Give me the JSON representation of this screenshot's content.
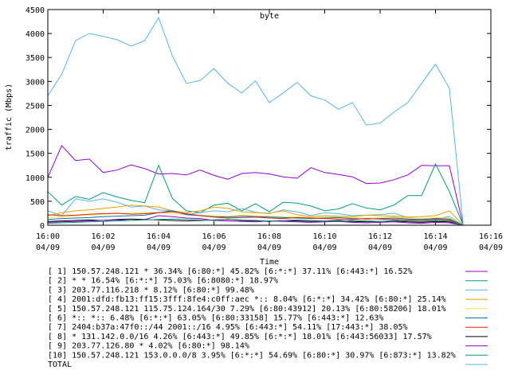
{
  "chart_data": {
    "type": "line",
    "title": "byte",
    "xlabel": "Time",
    "ylabel": "traffic (Mbps)",
    "ylim": [
      0,
      4500
    ],
    "xlim": [
      0,
      16
    ],
    "yticks": [
      0,
      500,
      1000,
      1500,
      2000,
      2500,
      3000,
      3500,
      4000,
      4500
    ],
    "xticks": [
      {
        "t": 0,
        "time": "16:00",
        "date": "04/09"
      },
      {
        "t": 2,
        "time": "16:02",
        "date": "04/09"
      },
      {
        "t": 4,
        "time": "16:04",
        "date": "04/09"
      },
      {
        "t": 6,
        "time": "16:06",
        "date": "04/09"
      },
      {
        "t": 8,
        "time": "16:08",
        "date": "04/09"
      },
      {
        "t": 10,
        "time": "16:10",
        "date": "04/09"
      },
      {
        "t": 12,
        "time": "16:12",
        "date": "04/09"
      },
      {
        "t": 14,
        "time": "16:14",
        "date": "04/09"
      },
      {
        "t": 16,
        "time": "16:16",
        "date": "04/09"
      }
    ],
    "x": [
      0,
      0.5,
      1,
      1.5,
      2,
      2.5,
      3,
      3.5,
      4,
      4.5,
      5,
      5.5,
      6,
      6.5,
      7,
      7.5,
      8,
      8.5,
      9,
      9.5,
      10,
      10.5,
      11,
      11.5,
      12,
      12.5,
      13,
      13.5,
      14,
      14.5,
      15
    ],
    "grid": false,
    "legend_position": "bottom",
    "series": [
      {
        "name": "[ 1] 150.57.248.121 * 36.34% [6:80:*] 45.82% [6:*:*] 37.11% [6:443:*] 16.52%",
        "color": "#9400d3",
        "values": [
          1000,
          1660,
          1350,
          1380,
          1100,
          1150,
          1260,
          1180,
          1070,
          1080,
          1050,
          1150,
          1040,
          960,
          1080,
          1100,
          1070,
          1010,
          980,
          1200,
          1100,
          1060,
          1010,
          870,
          880,
          950,
          1050,
          1250,
          1240,
          1240,
          0
        ]
      },
      {
        "name": "[ 2] * * 16.54% [6:*:*] 75.03% [6:8080:*] 18.97%",
        "color": "#009e73",
        "values": [
          700,
          420,
          600,
          540,
          680,
          590,
          520,
          470,
          1250,
          560,
          300,
          260,
          420,
          460,
          300,
          450,
          280,
          480,
          460,
          400,
          300,
          340,
          450,
          360,
          320,
          420,
          620,
          620,
          1280,
          700,
          0
        ]
      },
      {
        "name": "[ 3] 203.77.116.218 * 8.12% [6:80:*] 99.48%",
        "color": "#56b4e9",
        "values": [
          300,
          200,
          550,
          500,
          550,
          480,
          380,
          400,
          320,
          300,
          220,
          260,
          300,
          280,
          350,
          270,
          240,
          320,
          280,
          200,
          260,
          240,
          200,
          210,
          220,
          250,
          160,
          130,
          140,
          180,
          0
        ]
      },
      {
        "name": "[ 4] 2001:dfd:fb13:ff15:3fff:8fe4:c0ff:aec *:: 8.04% [6:*:*] 34.42% [6:80:*] 25.14%",
        "color": "#e69f00",
        "values": [
          200,
          260,
          300,
          320,
          350,
          380,
          420,
          400,
          380,
          300,
          260,
          300,
          380,
          350,
          280,
          260,
          250,
          300,
          220,
          180,
          200,
          190,
          180,
          210,
          200,
          190,
          170,
          180,
          200,
          300,
          0
        ]
      },
      {
        "name": "[ 5] 150.57.248.121 115.75.124.164/30 7.29% [6:80:43912] 20.13% [6:80:58206] 18.01%",
        "color": "#f0e442",
        "values": [
          160,
          180,
          200,
          210,
          230,
          240,
          250,
          260,
          270,
          240,
          220,
          210,
          200,
          190,
          210,
          200,
          190,
          180,
          170,
          160,
          170,
          180,
          160,
          150,
          160,
          170,
          150,
          140,
          160,
          150,
          0
        ]
      },
      {
        "name": "[ 6] *:: *:: 6.48% [6:*:*] 63.05% [6:80:33158] 15.77% [6:443:*] 12.63%",
        "color": "#0072b2",
        "values": [
          120,
          140,
          150,
          160,
          180,
          190,
          200,
          210,
          260,
          300,
          220,
          200,
          180,
          170,
          190,
          180,
          170,
          160,
          150,
          140,
          150,
          160,
          140,
          130,
          140,
          150,
          130,
          120,
          140,
          130,
          0
        ]
      },
      {
        "name": "[ 7] 2404:b37a:47f0::/44 2001::/16 4.95% [6:443:*] 54.11% [17:443:*] 38.05%",
        "color": "#e51e10",
        "values": [
          220,
          200,
          210,
          230,
          240,
          250,
          230,
          240,
          260,
          280,
          240,
          200,
          170,
          150,
          160,
          170,
          150,
          140,
          160,
          150,
          140,
          130,
          120,
          140,
          130,
          120,
          110,
          100,
          120,
          110,
          0
        ]
      },
      {
        "name": "[ 8] * 131.142.0.0/16 4.26% [6:443:*] 49.85% [6:*:*] 18.01% [6:443:56033] 17.57%",
        "color": "#000000",
        "values": [
          80,
          90,
          100,
          110,
          100,
          120,
          130,
          120,
          110,
          100,
          90,
          100,
          110,
          120,
          100,
          90,
          80,
          100,
          90,
          80,
          90,
          100,
          80,
          70,
          80,
          90,
          70,
          60,
          80,
          70,
          0
        ]
      },
      {
        "name": "[ 9] 203.77.126.80 * 4.02% [6:80:*] 98.14%",
        "color": "#9400d3",
        "values": [
          60,
          70,
          80,
          90,
          100,
          110,
          100,
          120,
          200,
          180,
          150,
          140,
          100,
          90,
          80,
          70,
          90,
          80,
          70,
          60,
          70,
          80,
          60,
          50,
          60,
          70,
          50,
          40,
          60,
          50,
          0
        ]
      },
      {
        "name": "[10] 150.57.248.121 153.0.0.0/8 3.95% [6:*:*] 54.69% [6:80:*] 30.97% [6:873:*] 13.82%",
        "color": "#009e73",
        "values": [
          40,
          50,
          60,
          70,
          80,
          90,
          100,
          110,
          120,
          130,
          120,
          110,
          100,
          120,
          110,
          100,
          90,
          100,
          110,
          100,
          90,
          80,
          100,
          90,
          80,
          100,
          90,
          80,
          100,
          90,
          0
        ]
      },
      {
        "name": "TOTAL",
        "color": "#56b4e9",
        "values": [
          2700,
          3150,
          3850,
          4000,
          3940,
          3870,
          3740,
          3850,
          4330,
          3530,
          2960,
          3020,
          3270,
          2960,
          2760,
          3010,
          2560,
          2760,
          2980,
          2700,
          2610,
          2420,
          2560,
          2090,
          2130,
          2360,
          2560,
          2960,
          3360,
          2860,
          0
        ]
      }
    ]
  }
}
